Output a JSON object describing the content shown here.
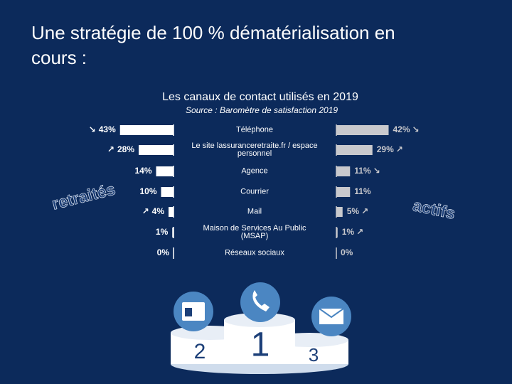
{
  "title_lines": [
    "Une stratégie de 100 % dématérialisation en",
    "cours :"
  ],
  "chart_data": {
    "type": "butterfly",
    "title": "Les canaux de contact utilisés en 2019",
    "subtitle": "Source : Baromètre de satisfaction 2019",
    "categories": [
      "Téléphone",
      "Le site lassuranceretraite.fr / espace personnel",
      "Agence",
      "Courrier",
      "Mail",
      "Maison de Services Au Public (MSAP)",
      "Réseaux sociaux"
    ],
    "xlim": [
      0,
      100
    ],
    "series": [
      {
        "name": "retraités",
        "color": "#ffffff",
        "side": "left",
        "values": [
          43,
          28,
          14,
          10,
          4,
          1,
          0
        ],
        "value_labels": [
          "43%",
          "28%",
          "14%",
          "10%",
          "4%",
          "1%",
          "0%"
        ],
        "trends": [
          "↘",
          "↗",
          null,
          null,
          "↗",
          null,
          null
        ]
      },
      {
        "name": "actifs",
        "color": "#c9c9cd",
        "side": "right",
        "values": [
          42,
          29,
          11,
          11,
          5,
          1,
          0
        ],
        "value_labels": [
          "42%",
          "29%",
          "11%",
          "11%",
          "5%",
          "1%",
          "0%"
        ],
        "trends": [
          "↘",
          "↗",
          "↘",
          null,
          "↗",
          "↗",
          null
        ]
      }
    ]
  },
  "podium": [
    "1",
    "2",
    "3"
  ]
}
